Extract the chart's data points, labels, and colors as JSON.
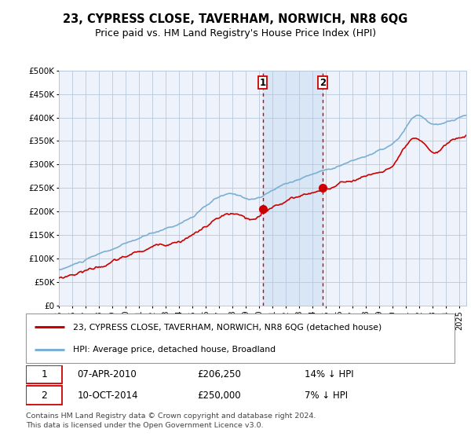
{
  "title": "23, CYPRESS CLOSE, TAVERHAM, NORWICH, NR8 6QG",
  "subtitle": "Price paid vs. HM Land Registry's House Price Index (HPI)",
  "legend_line1": "23, CYPRESS CLOSE, TAVERHAM, NORWICH, NR8 6QG (detached house)",
  "legend_line2": "HPI: Average price, detached house, Broadland",
  "sale1_date": "07-APR-2010",
  "sale1_price": 206250,
  "sale1_label": "14% ↓ HPI",
  "sale2_date": "10-OCT-2014",
  "sale2_price": 250000,
  "sale2_label": "7% ↓ HPI",
  "note": "Contains HM Land Registry data © Crown copyright and database right 2024.\nThis data is licensed under the Open Government Licence v3.0.",
  "hpi_color": "#7bafd4",
  "price_color": "#cc0000",
  "bg_color": "#eef2fa",
  "shade_color": "#d8e6f5",
  "grid_color": "#b8c8dc",
  "ylim": [
    0,
    500000
  ],
  "yticks": [
    0,
    50000,
    100000,
    150000,
    200000,
    250000,
    300000,
    350000,
    400000,
    450000,
    500000
  ],
  "start_year": 1995,
  "end_year": 2025
}
